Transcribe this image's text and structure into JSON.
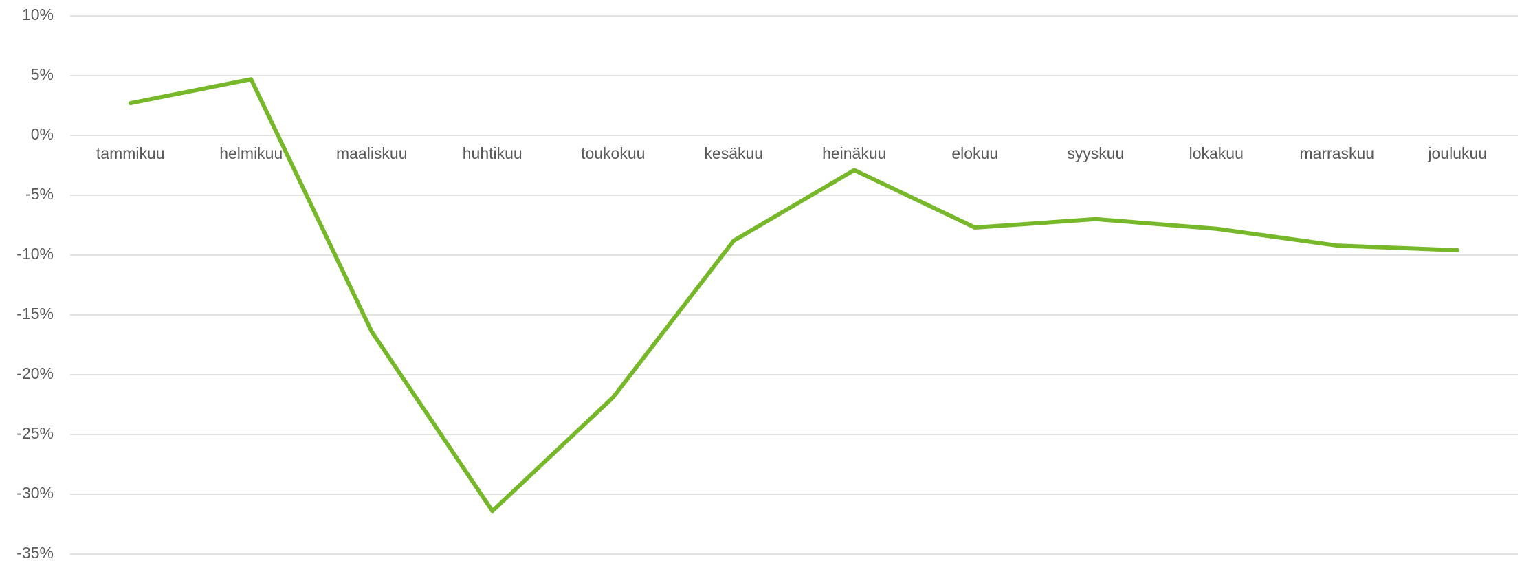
{
  "chart_data": {
    "type": "line",
    "categories": [
      "tammikuu",
      "helmikuu",
      "maaliskuu",
      "huhtikuu",
      "toukokuu",
      "kesäkuu",
      "heinäkuu",
      "elokuu",
      "syyskuu",
      "lokakuu",
      "marraskuu",
      "joulukuu"
    ],
    "values": [
      2.7,
      4.7,
      -16.4,
      -31.4,
      -21.9,
      -8.8,
      -2.9,
      -7.7,
      -7.0,
      -7.8,
      -9.2,
      -9.6
    ],
    "color": "#76b82a",
    "ylim": [
      -35,
      10
    ],
    "yticks": [
      {
        "value": -35,
        "label": "-35%"
      },
      {
        "value": -30,
        "label": "-30%"
      },
      {
        "value": -25,
        "label": "-25%"
      },
      {
        "value": -20,
        "label": "-20%"
      },
      {
        "value": -15,
        "label": "-15%"
      },
      {
        "value": -10,
        "label": "-10%"
      },
      {
        "value": -5,
        "label": "-5%"
      },
      {
        "value": 0,
        "label": "0%"
      },
      {
        "value": 5,
        "label": "5%"
      },
      {
        "value": 10,
        "label": "10%"
      }
    ],
    "grid": true
  }
}
